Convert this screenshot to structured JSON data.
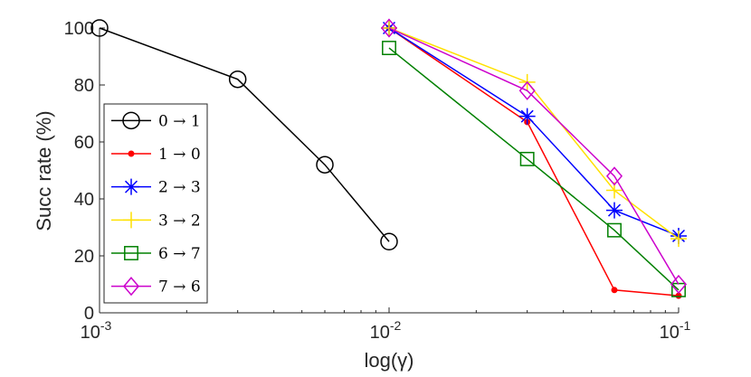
{
  "chart_data": {
    "type": "line",
    "xscale": "log",
    "xlim": [
      0.001,
      0.1
    ],
    "ylim": [
      0,
      100
    ],
    "xlabel": "log(γ)",
    "ylabel": "Succ rate (%)",
    "xticks": [
      {
        "value": 0.001,
        "base": "10",
        "exp": "-3"
      },
      {
        "value": 0.01,
        "base": "10",
        "exp": "-2"
      },
      {
        "value": 0.1,
        "base": "10",
        "exp": "-1"
      }
    ],
    "yticks": [
      {
        "value": 0,
        "label": "0"
      },
      {
        "value": 20,
        "label": "20"
      },
      {
        "value": 40,
        "label": "40"
      },
      {
        "value": 60,
        "label": "60"
      },
      {
        "value": 80,
        "label": "80"
      },
      {
        "value": 100,
        "label": "100"
      }
    ],
    "grid": false,
    "legend_position": "left",
    "series": [
      {
        "name": "0 → 1",
        "color": "#000000",
        "marker": "circle",
        "x": [
          0.001,
          0.003,
          0.006,
          0.01
        ],
        "y": [
          100,
          82,
          52,
          25
        ]
      },
      {
        "name": "1 → 0",
        "color": "#ff0000",
        "marker": "dot",
        "x": [
          0.01,
          0.03,
          0.06,
          0.1
        ],
        "y": [
          100,
          67,
          8,
          6
        ]
      },
      {
        "name": "2 → 3",
        "color": "#0000ff",
        "marker": "asterisk",
        "x": [
          0.01,
          0.03,
          0.06,
          0.1
        ],
        "y": [
          100,
          69,
          36,
          27
        ]
      },
      {
        "name": "3 → 2",
        "color": "#ffe100",
        "marker": "plus",
        "x": [
          0.01,
          0.03,
          0.06,
          0.1
        ],
        "y": [
          100,
          81,
          43,
          26
        ]
      },
      {
        "name": "6 → 7",
        "color": "#008000",
        "marker": "square",
        "x": [
          0.01,
          0.03,
          0.06,
          0.1
        ],
        "y": [
          93,
          54,
          29,
          8
        ]
      },
      {
        "name": "7 → 6",
        "color": "#cc00cc",
        "marker": "diamond",
        "x": [
          0.01,
          0.03,
          0.06,
          0.1
        ],
        "y": [
          100,
          78,
          48,
          10
        ]
      }
    ]
  }
}
